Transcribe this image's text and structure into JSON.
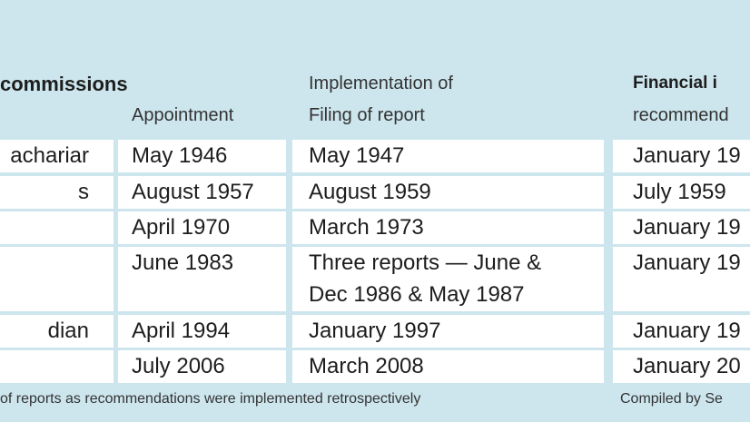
{
  "header": {
    "group_title": "commissions",
    "implementation_title": "Implementation of",
    "financial_title": "Financial i"
  },
  "columns": [
    "",
    "Appointment",
    "Filing of report",
    "recommend"
  ],
  "table": {
    "rows": [
      [
        [
          "achariar"
        ],
        [
          "May 1946"
        ],
        [
          "May 1947"
        ],
        [
          "January 19"
        ]
      ],
      [
        [
          "s"
        ],
        [
          "August 1957"
        ],
        [
          "August 1959"
        ],
        [
          "July 1959"
        ]
      ],
      [
        [],
        [
          "April 1970"
        ],
        [
          "March 1973"
        ],
        [
          "January 19"
        ]
      ],
      [
        [],
        [
          "June 1983"
        ],
        [
          "Three reports — June &",
          "Dec 1986 & May 1987"
        ],
        [
          "January 19"
        ]
      ],
      [
        [
          "dian"
        ],
        [
          "April 1994"
        ],
        [
          "January 1997"
        ],
        [
          "January 19"
        ]
      ],
      [
        [],
        [
          "July 2006"
        ],
        [
          "March 2008"
        ],
        [
          "January 20"
        ]
      ]
    ]
  },
  "footer": {
    "note": "of reports as recommendations were implemented retrospectively",
    "credit": "Compiled by Se"
  }
}
